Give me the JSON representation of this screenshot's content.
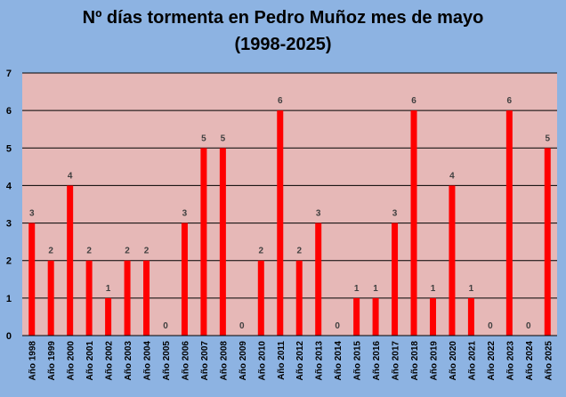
{
  "chart_data": {
    "type": "bar",
    "title_line1": "Nº días tormenta en Pedro Muñoz mes de mayo",
    "title_line2": "(1998-2025)",
    "xlabel": "",
    "ylabel": "",
    "ylim": [
      0,
      7
    ],
    "yticks": [
      "0",
      "1",
      "2",
      "3",
      "4",
      "5",
      "6",
      "7"
    ],
    "grid": true,
    "legend": "none",
    "colors": {
      "background": "#8db3e2",
      "plot_area": "#e6b8b7",
      "bar": "#ff0000",
      "gridline": "#000000",
      "value_label": "#404040"
    },
    "categories": [
      "Año 1998",
      "Año 1999",
      "Año 2000",
      "Año 2001",
      "Año 2002",
      "Año 2003",
      "Año 2004",
      "Año 2005",
      "Año 2006",
      "Año 2007",
      "Año 2008",
      "Año 2009",
      "Año 2010",
      "Año 2011",
      "Año 2012",
      "Año 2013",
      "Año 2014",
      "Año 2015",
      "Año 2016",
      "Año 2017",
      "Año 2018",
      "Año 2019",
      "Año 2020",
      "Año 2021",
      "Año 2022",
      "Año 2023",
      "Año 2024",
      "Año 2025"
    ],
    "values": [
      3,
      2,
      4,
      2,
      1,
      2,
      2,
      0,
      3,
      5,
      5,
      0,
      2,
      6,
      2,
      3,
      0,
      1,
      1,
      3,
      6,
      1,
      4,
      1,
      0,
      6,
      0,
      5
    ]
  }
}
